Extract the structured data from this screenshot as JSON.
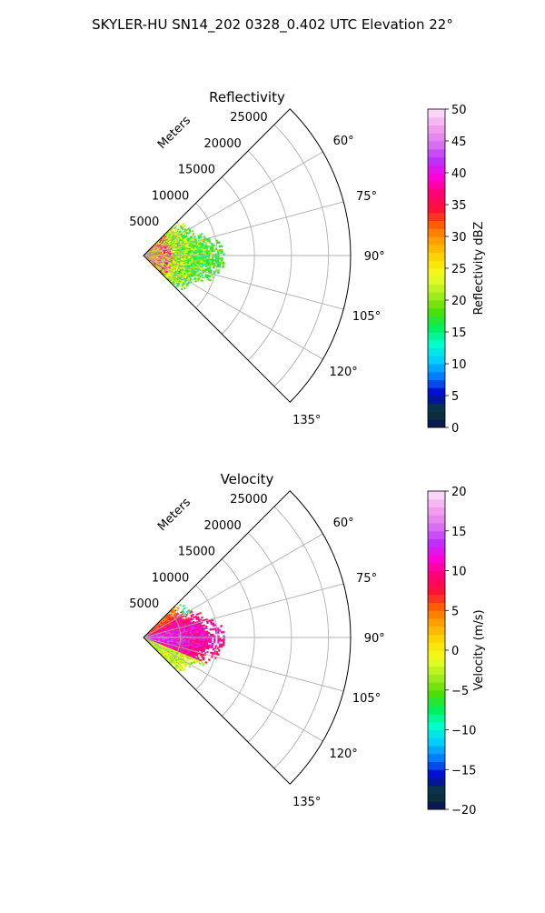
{
  "figure": {
    "title": "SKYLER-HU  SN14_202  0328_0.402 UTC Elevation 22°"
  },
  "chart_data": [
    {
      "type": "heatmap",
      "title": "Reflectivity",
      "projection": "polar-sector",
      "theta_range_deg": [
        45,
        135
      ],
      "r_range_m": [
        0,
        28000
      ],
      "r_ticks": [
        "5000",
        "10000",
        "15000",
        "20000",
        "25000"
      ],
      "r_axis_label": "Meters",
      "theta_ticks": [
        "60°",
        "75°",
        "90°",
        "105°",
        "120°",
        "135°"
      ],
      "grid": true,
      "data_extent_m": 11000,
      "field": "reflectivity",
      "colorbar": {
        "label": "Reflectivity dBZ",
        "range": [
          0,
          50
        ],
        "ticks": [
          "0",
          "5",
          "10",
          "15",
          "20",
          "25",
          "30",
          "35",
          "40",
          "45",
          "50"
        ],
        "stops": [
          "#0a1060",
          "#0b3d2e",
          "#0000cc",
          "#0077ff",
          "#00ccff",
          "#00ffcc",
          "#00ee55",
          "#55dd00",
          "#aaee22",
          "#eeff22",
          "#ffdd00",
          "#ffaa00",
          "#ff6600",
          "#ff1133",
          "#ff0077",
          "#ff00dd",
          "#bb33ff",
          "#dd77ee",
          "#f4a6ee",
          "#fbe4fb"
        ]
      }
    },
    {
      "type": "heatmap",
      "title": "Velocity",
      "projection": "polar-sector",
      "theta_range_deg": [
        45,
        135
      ],
      "r_range_m": [
        0,
        28000
      ],
      "r_ticks": [
        "5000",
        "10000",
        "15000",
        "20000",
        "25000"
      ],
      "r_axis_label": "Meters",
      "theta_ticks": [
        "60°",
        "75°",
        "90°",
        "105°",
        "120°",
        "135°"
      ],
      "grid": true,
      "data_extent_m": 11000,
      "field": "velocity",
      "colorbar": {
        "label": "Velocity (m/s)",
        "range": [
          -20,
          20
        ],
        "ticks": [
          "−20",
          "−15",
          "−10",
          "−5",
          "0",
          "5",
          "10",
          "15",
          "20"
        ],
        "stops": [
          "#0a1060",
          "#0b3d2e",
          "#0000cc",
          "#0077ff",
          "#00ccff",
          "#00ffcc",
          "#00ee55",
          "#55dd00",
          "#aaee22",
          "#eeff22",
          "#ffdd00",
          "#ffaa00",
          "#ff6600",
          "#ff1133",
          "#ff0077",
          "#ff00dd",
          "#bb33ff",
          "#dd77ee",
          "#f4a6ee",
          "#fbe4fb"
        ]
      }
    }
  ]
}
